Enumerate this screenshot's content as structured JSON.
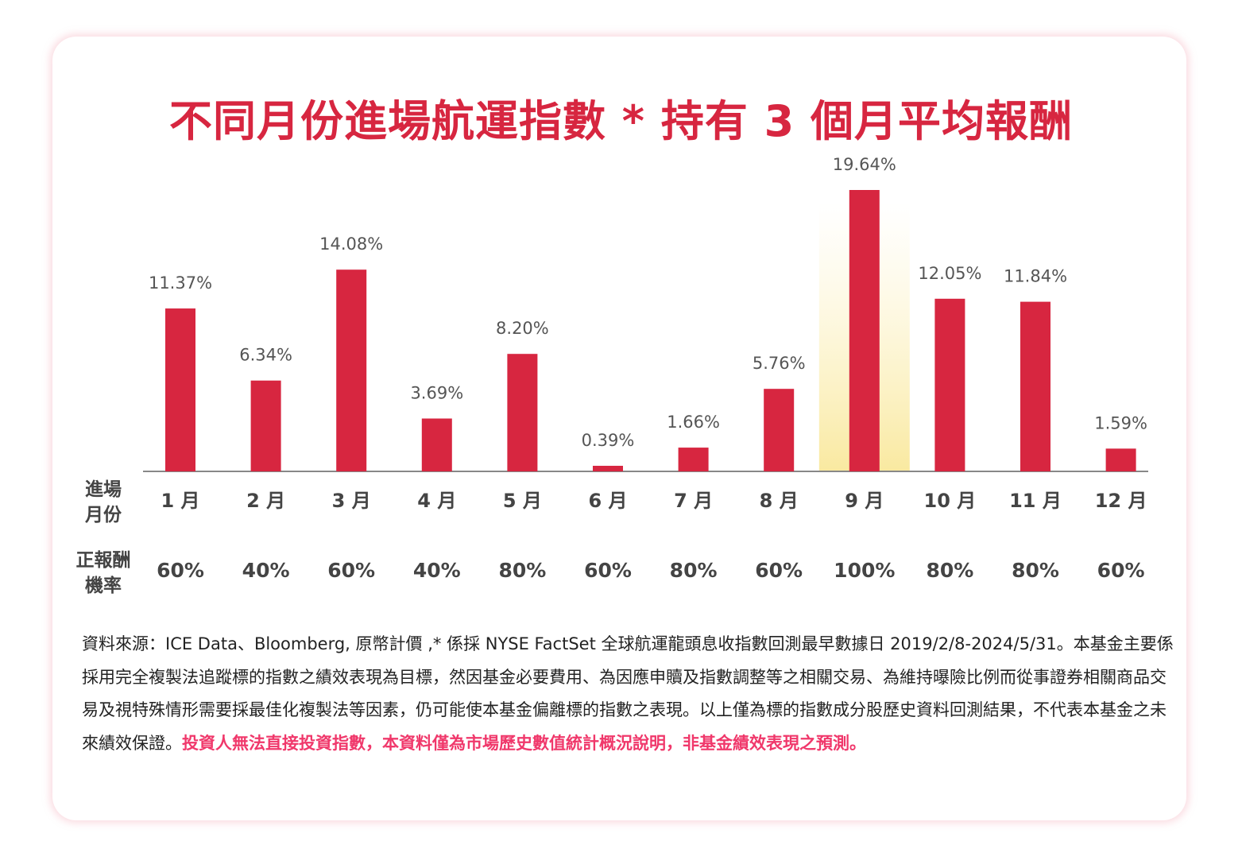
{
  "title": "不同月份進場航運指數 * 持有 3 個月平均報酬",
  "row_labels": {
    "month": "進場\n月份",
    "probability": "正報酬\n機率"
  },
  "colors": {
    "bar": "#d72640",
    "title": "#d72640",
    "highlight_band": "#f9e9a0",
    "disclaimer_highlight": "#f0386b"
  },
  "chart_data": {
    "type": "bar",
    "title": "不同月份進場航運指數 * 持有 3 個月平均報酬",
    "categories": [
      "1 月",
      "2 月",
      "3 月",
      "4 月",
      "5 月",
      "6 月",
      "7 月",
      "8 月",
      "9 月",
      "10 月",
      "11 月",
      "12 月"
    ],
    "values": [
      11.37,
      6.34,
      14.08,
      3.69,
      8.2,
      0.39,
      1.66,
      5.76,
      19.64,
      12.05,
      11.84,
      1.59
    ],
    "data_labels": [
      "11.37%",
      "6.34%",
      "14.08%",
      "3.69%",
      "8.20%",
      "0.39%",
      "1.66%",
      "5.76%",
      "19.64%",
      "12.05%",
      "11.84%",
      "1.59%"
    ],
    "positive_probability": [
      "60%",
      "40%",
      "60%",
      "40%",
      "80%",
      "60%",
      "80%",
      "60%",
      "100%",
      "80%",
      "80%",
      "60%"
    ],
    "highlighted_category": "9 月",
    "ylim": [
      0,
      20
    ],
    "grid": false,
    "legend": "none"
  },
  "note": {
    "text": "資料來源：ICE Data、Bloomberg, 原幣計價 ,* 係採 NYSE FactSet 全球航運龍頭息收指數回測最早數據日 2019/2/8-2024/5/31。本基金主要係採用完全複製法追蹤標的指數之績效表現為目標，然因基金必要費用、為因應申贖及指數調整等之相關交易、為維持曝險比例而從事證券相關商品交易及視特殊情形需要採最佳化複製法等因素，仍可能使本基金偏離標的指數之表現。以上僅為標的指數成分股歷史資料回測結果，不代表本基金之未來績效保證。",
    "highlight": "投資人無法直接投資指數，本資料僅為市場歷史數值統計概況說明，非基金績效表現之預測。"
  }
}
